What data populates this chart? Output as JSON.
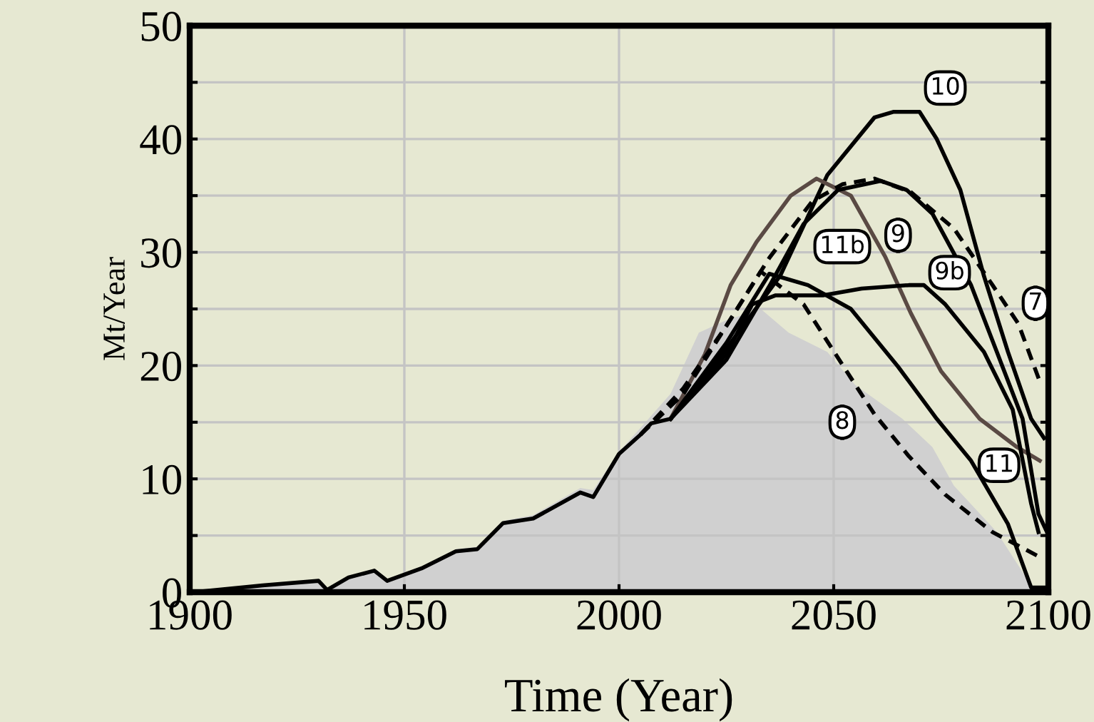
{
  "chart_data": {
    "type": "line",
    "xlabel": "Time (Year)",
    "ylabel": "Mt/Year",
    "xlim": [
      1900,
      2100
    ],
    "ylim": [
      0,
      50
    ],
    "xticks": [
      1900,
      1950,
      2000,
      2050,
      2100
    ],
    "yticks": [
      0,
      {
        "value": 5,
        "label": null
      },
      10,
      {
        "value": 15,
        "label": null
      },
      20,
      {
        "value": 25,
        "label": null
      },
      30,
      {
        "value": 35,
        "label": null
      },
      40,
      {
        "value": 45,
        "label": null
      },
      50
    ],
    "grid": true,
    "legend": false,
    "series": [
      {
        "type": "area",
        "color": "#d0d0d0",
        "x": [
          1901,
          1917,
          1930,
          1932,
          1937,
          1943,
          1946,
          1954,
          1962,
          1967,
          1973,
          1980,
          1991,
          1994,
          2000,
          2005,
          2012,
          2018.6,
          2025,
          2033,
          2039.5,
          2048.5,
          2055,
          2066,
          2073,
          2078,
          2088,
          2096,
          2097
        ],
        "values": [
          0,
          0.6,
          1.0,
          0.2,
          1.3,
          1.9,
          1.0,
          2.1,
          3.8,
          4.0,
          6.3,
          6.8,
          9.2,
          9.0,
          12.4,
          14.5,
          17.5,
          22.9,
          24.0,
          25.0,
          22.9,
          21.2,
          18.3,
          15.3,
          12.8,
          9.4,
          5.3,
          0.6,
          0
        ]
      },
      {
        "color": "#000000",
        "line_style": "solid",
        "x": [
          1901,
          1917,
          1930,
          1932,
          1937,
          1943,
          1946,
          1954,
          1962,
          1967,
          1973,
          1980,
          1991,
          1994,
          2000,
          2005,
          2007.5,
          2012
        ],
        "values": [
          0,
          0.6,
          1.0,
          0.2,
          1.3,
          1.9,
          1.0,
          2.1,
          3.6,
          3.8,
          6.1,
          6.5,
          8.8,
          8.4,
          12.2,
          13.9,
          14.9,
          15.3
        ]
      },
      {
        "color": "#000000",
        "line_style": "solid",
        "x": [
          2012,
          2025,
          2037.5,
          2048.5,
          2059.5,
          2064,
          2070,
          2074,
          2079.5,
          2085,
          2090.6,
          2096,
          2099
        ],
        "values": [
          15.3,
          21.5,
          27.9,
          36.8,
          41.9,
          42.4,
          42.4,
          40.0,
          35.5,
          27.9,
          21.2,
          15.3,
          13.6
        ]
      },
      {
        "color": "#5a4a44",
        "line_style": "solid",
        "x": [
          2012,
          2020,
          2026,
          2032,
          2040,
          2046,
          2054,
          2062,
          2068,
          2075,
          2084,
          2092.7,
          2098
        ],
        "values": [
          15.3,
          21.0,
          27.1,
          30.9,
          35.0,
          36.5,
          35.0,
          29.6,
          24.6,
          19.5,
          15.3,
          12.8,
          11.6
        ]
      },
      {
        "color": "#000000",
        "line_style": "dashed",
        "x": [
          2005,
          2015,
          2025,
          2035,
          2045,
          2052,
          2059.5,
          2068,
          2078,
          2087,
          2093,
          2098
        ],
        "values": [
          13.9,
          18.0,
          23.5,
          29.5,
          34.5,
          36.0,
          36.5,
          35.3,
          32.1,
          27.1,
          23.7,
          18.6
        ]
      },
      {
        "color": "#000000",
        "line_style": "solid",
        "x": [
          2012,
          2025,
          2035,
          2043,
          2051,
          2061,
          2067,
          2073,
          2082,
          2088,
          2094,
          2097.7,
          2099.8
        ],
        "values": [
          15.3,
          20.5,
          27.0,
          32.5,
          35.5,
          36.3,
          35.5,
          33.4,
          27.1,
          21.2,
          15.3,
          6.9,
          5.2
        ]
      },
      {
        "color": "#000000",
        "line_style": "solid",
        "x": [
          2012,
          2025,
          2031,
          2036.5,
          2047.5,
          2056.5,
          2067.5,
          2071,
          2076,
          2085,
          2091.7,
          2096,
          2097.7
        ],
        "values": [
          15.3,
          21.0,
          25.4,
          26.2,
          26.2,
          26.8,
          27.1,
          27.1,
          25.4,
          21.2,
          16.1,
          7.8,
          5.3
        ]
      },
      {
        "color": "#000000",
        "line_style": "solid",
        "x": [
          2012,
          2025,
          2035,
          2044,
          2054,
          2065,
          2074,
          2082,
          2090.6,
          2096,
          2099
        ],
        "values": [
          15.3,
          22.0,
          28.1,
          27.1,
          25.0,
          19.9,
          15.3,
          11.6,
          6.0,
          0.4,
          0.4
        ]
      },
      {
        "color": "#000000",
        "line_style": "dashed",
        "x": [
          2005,
          2015,
          2025,
          2033,
          2043,
          2053,
          2059.5,
          2067.5,
          2076,
          2087,
          2098
        ],
        "values": [
          13.9,
          17.5,
          23.5,
          28.3,
          25.4,
          19.5,
          15.7,
          12.0,
          8.6,
          5.3,
          3.1
        ]
      }
    ],
    "annotations": [
      {
        "text": "10",
        "x": 2076,
        "y": 44.5
      },
      {
        "text": "9",
        "x": 2065,
        "y": 31.5
      },
      {
        "text": "9b",
        "x": 2077,
        "y": 28.2
      },
      {
        "text": "11b",
        "x": 2052,
        "y": 30.5
      },
      {
        "text": "7",
        "x": 2097,
        "y": 25.5
      },
      {
        "text": "11",
        "x": 2088.5,
        "y": 11.2
      },
      {
        "text": "8",
        "x": 2052,
        "y": 15.0
      }
    ]
  }
}
